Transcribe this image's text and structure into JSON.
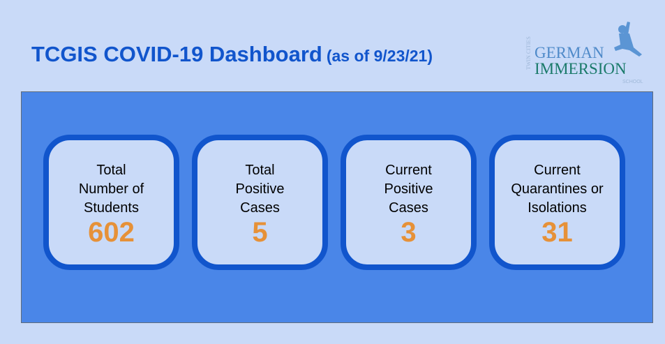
{
  "header": {
    "title": "TCGIS COVID-19 Dashboard",
    "subtitle": "(as of 9/23/21)"
  },
  "logo": {
    "line_top": "TWIN CITIES",
    "line1": "GERMAN",
    "line2": "IMMERSION",
    "line3": "SCHOOL"
  },
  "cards": [
    {
      "label_lines": [
        "Total",
        "Number of",
        "Students"
      ],
      "value": "602"
    },
    {
      "label_lines": [
        "Total",
        "Positive",
        "Cases"
      ],
      "value": "5"
    },
    {
      "label_lines": [
        "Current",
        "Positive",
        "Cases"
      ],
      "value": "3"
    },
    {
      "label_lines": [
        "Current",
        "Quarantines or",
        "Isolations"
      ],
      "value": "31"
    }
  ],
  "colors": {
    "background": "#c9daf8",
    "panel": "#4a86e8",
    "card_border": "#1155cc",
    "value": "#e69138",
    "title": "#1155cc"
  }
}
